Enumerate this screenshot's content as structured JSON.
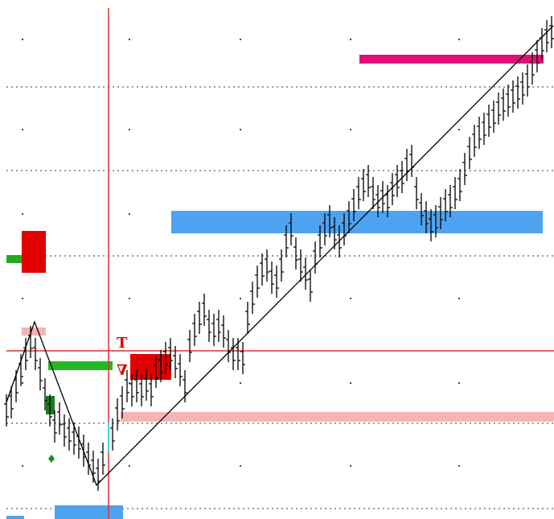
{
  "markers": {
    "target": "T",
    "stop": "∇"
  }
}
